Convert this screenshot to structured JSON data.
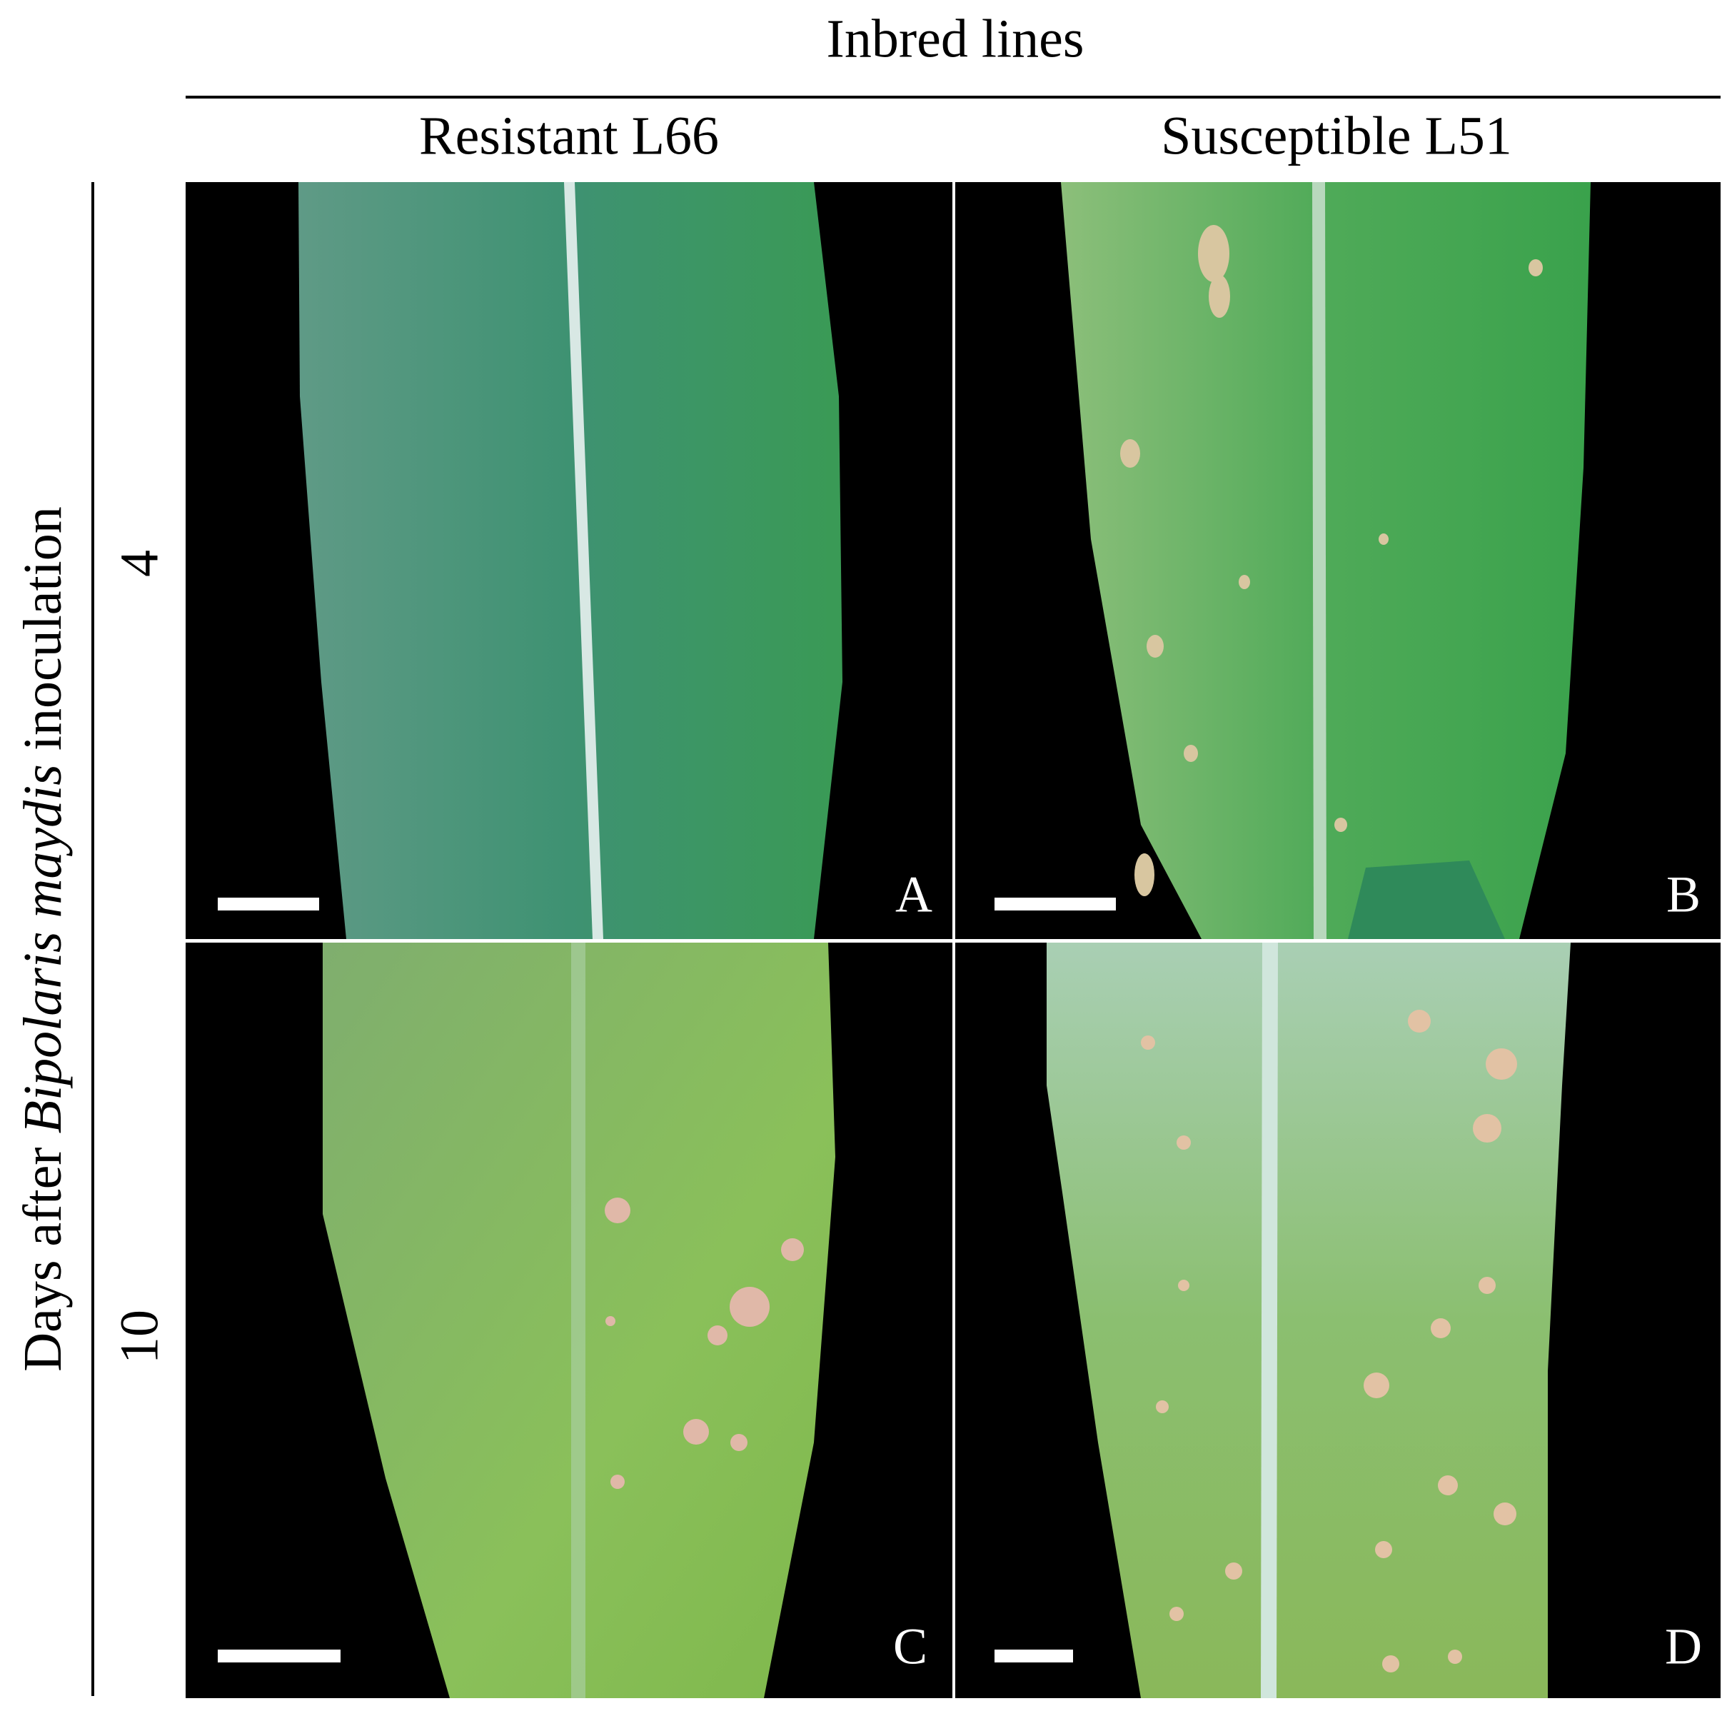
{
  "figure": {
    "title": "Inbred lines",
    "columns": [
      "Resistant L66",
      "Susceptible L51"
    ],
    "row_axis_label": {
      "before": "Days after ",
      "italic": "Bipolaris maydis",
      "after": " inoculation"
    },
    "rows": [
      "4",
      "10"
    ],
    "panels": [
      "A",
      "B",
      "C",
      "D"
    ]
  }
}
